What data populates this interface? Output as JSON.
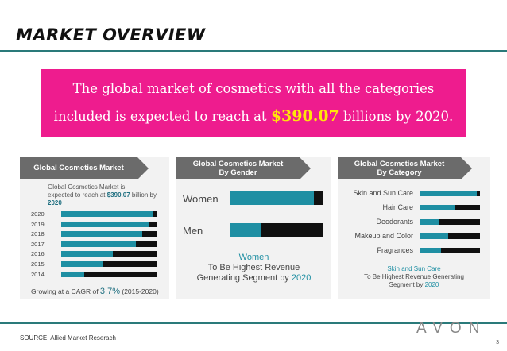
{
  "slide": {
    "title": "MARKET OVERVIEW",
    "page_number": "3"
  },
  "banner": {
    "line1": "The global market of cosmetics with all the categories",
    "line2_pre": "included is expected to reach at ",
    "highlight": "$390.07",
    "line2_post": " billions by 2020."
  },
  "panel1": {
    "head": "Global Cosmetics Market",
    "sub_line1": "Global Cosmetics Market is",
    "sub_line2_pre": "expected to reach at ",
    "sub_value": "$390.07",
    "sub_mid": " billion by ",
    "sub_year": "2020",
    "years": [
      {
        "label": "2020",
        "fill": 0.97
      },
      {
        "label": "2019",
        "fill": 0.92
      },
      {
        "label": "2018",
        "fill": 0.85
      },
      {
        "label": "2017",
        "fill": 0.78
      },
      {
        "label": "2016",
        "fill": 0.54
      },
      {
        "label": "2015",
        "fill": 0.44
      },
      {
        "label": "2014",
        "fill": 0.24
      }
    ],
    "cagr_pre": "Growing at a CAGR of ",
    "cagr_value": "3.7%",
    "cagr_post": " (2015-2020)"
  },
  "panel2": {
    "head_line1": "Global Cosmetics Market",
    "head_line2": "By Gender",
    "rows": [
      {
        "label": "Women",
        "fill": 0.9
      },
      {
        "label": "Men",
        "fill": 0.33
      }
    ],
    "caption_line1": "Women",
    "caption_line2": "To Be Highest Revenue",
    "caption_line3_pre": "Generating Segment by ",
    "caption_year": "2020"
  },
  "panel3": {
    "head_line1": "Global Cosmetics Market",
    "head_line2": "By Category",
    "rows": [
      {
        "label": "Skin and Sun Care",
        "fill": 0.95
      },
      {
        "label": "Hair Care",
        "fill": 0.57
      },
      {
        "label": "Deodorants",
        "fill": 0.3
      },
      {
        "label": "Makeup and Color",
        "fill": 0.47
      },
      {
        "label": "Fragrances",
        "fill": 0.35
      }
    ],
    "caption_line1": "Skin and Sun Care",
    "caption_line2": "To Be Highest Revenue Generating",
    "caption_line3_pre": "Segment by ",
    "caption_year": "2020"
  },
  "colors": {
    "banner": "#ee1c8e",
    "highlight": "#ffe60a",
    "bar_fill": "#1f8fa3",
    "bar_rest": "#111111",
    "rule": "#2a7a7a",
    "panel_head": "#6b6b6b"
  },
  "footer": {
    "source": "SOURCE: Allied Market Reserach",
    "logo": "AVON"
  }
}
